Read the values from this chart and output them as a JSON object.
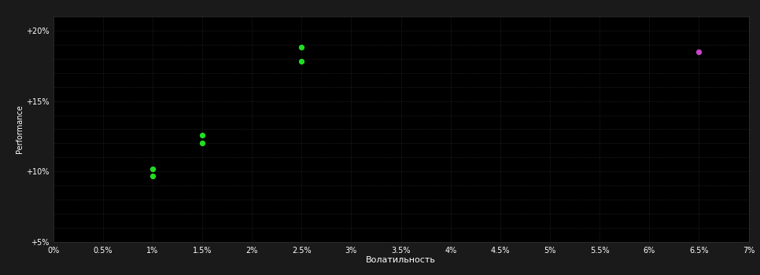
{
  "background_color": "#111111",
  "plot_bg_color": "#000000",
  "outer_bg_color": "#1a1a1a",
  "grid_color": "#333333",
  "text_color": "#ffffff",
  "xlabel": "Волатильность",
  "ylabel": "Performance",
  "xlim": [
    0.0,
    0.07
  ],
  "ylim": [
    0.05,
    0.21
  ],
  "xtick_vals": [
    0.0,
    0.005,
    0.01,
    0.015,
    0.02,
    0.025,
    0.03,
    0.035,
    0.04,
    0.045,
    0.05,
    0.055,
    0.06,
    0.065,
    0.07
  ],
  "xtick_labels": [
    "0%",
    "0.5%",
    "1%",
    "1.5%",
    "2%",
    "2.5%",
    "3%",
    "3.5%",
    "4%",
    "4.5%",
    "5%",
    "5.5%",
    "6%",
    "6.5%",
    "7%"
  ],
  "ytick_vals": [
    0.05,
    0.1,
    0.15,
    0.2
  ],
  "ytick_labels": [
    "+5%",
    "+10%",
    "+15%",
    "+20%"
  ],
  "extra_yticks": [
    0.06,
    0.07,
    0.08,
    0.09,
    0.11,
    0.12,
    0.13,
    0.14,
    0.16,
    0.17,
    0.18,
    0.19
  ],
  "green_points": [
    [
      0.01,
      0.102
    ],
    [
      0.01,
      0.097
    ],
    [
      0.015,
      0.126
    ],
    [
      0.015,
      0.12
    ],
    [
      0.025,
      0.188
    ],
    [
      0.025,
      0.178
    ]
  ],
  "purple_points": [
    [
      0.065,
      0.185
    ]
  ],
  "green_color": "#22dd22",
  "purple_color": "#cc44cc",
  "point_size": 18
}
